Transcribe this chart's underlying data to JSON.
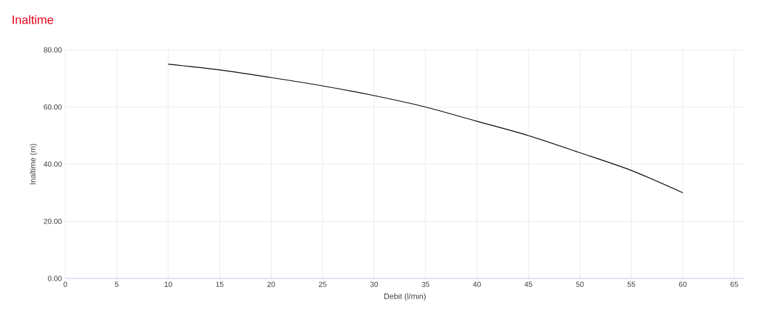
{
  "chart_data": {
    "type": "line",
    "title": "Inaltime",
    "xlabel": "Debit (l/min)",
    "ylabel": "Inaltime (m)",
    "x": [
      10,
      15,
      20,
      25,
      30,
      35,
      40,
      45,
      50,
      55,
      60
    ],
    "values": [
      75,
      73,
      70.3,
      67.4,
      64,
      60,
      55,
      50,
      44,
      37.8,
      30
    ],
    "color": "#000000",
    "marker": "none",
    "line_style": "solid",
    "grid": true,
    "xlim": [
      0,
      66
    ],
    "ylim": [
      0,
      80
    ],
    "xticks": [
      0,
      5,
      10,
      15,
      20,
      25,
      30,
      35,
      40,
      45,
      50,
      55,
      60,
      65
    ],
    "yticks": [
      {
        "value": 0,
        "label": "0.00"
      },
      {
        "value": 20,
        "label": "20.00"
      },
      {
        "value": 40,
        "label": "40.00"
      },
      {
        "value": 60,
        "label": "60.00"
      },
      {
        "value": 80,
        "label": "80.00"
      }
    ]
  }
}
